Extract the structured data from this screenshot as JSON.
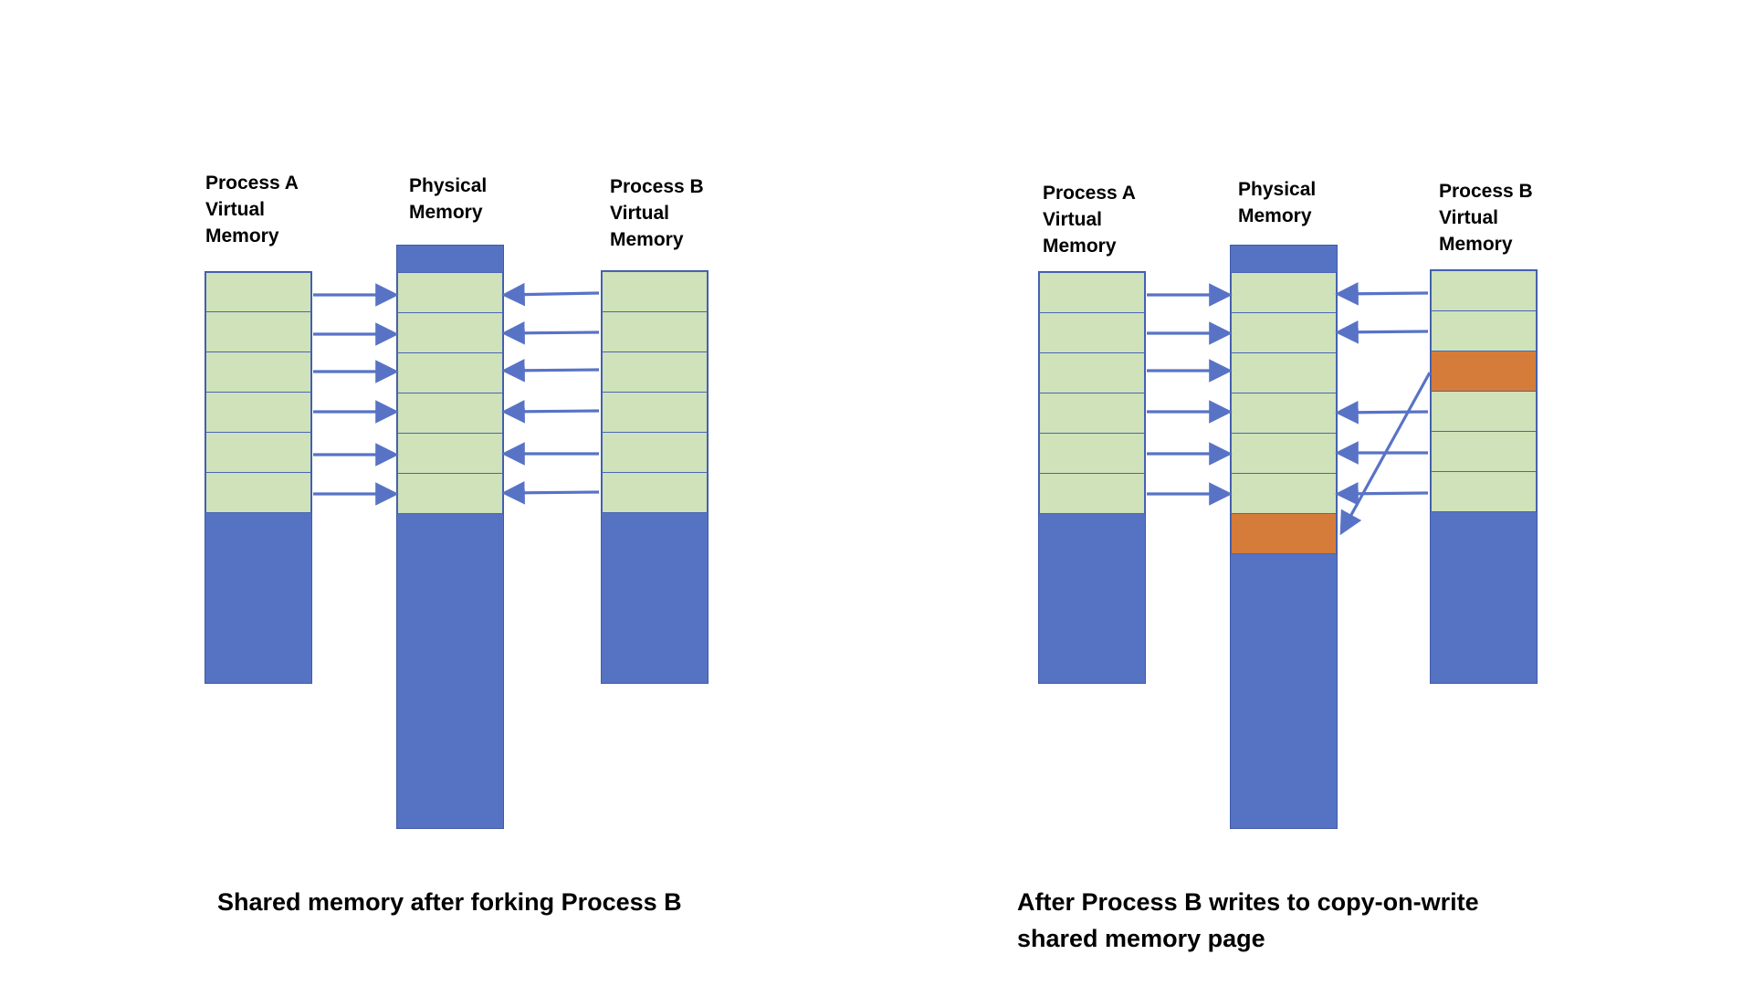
{
  "colors": {
    "memory_block": "#5672c3",
    "page_fill": "#cfe2b9",
    "page_border": "#4a66b4",
    "cow_page": "#d57c3a",
    "arrow": "#5873c6"
  },
  "left_diagram": {
    "process_a_label": "Process A\nVirtual\nMemory",
    "physical_label": "Physical\nMemory",
    "process_b_label": "Process B\nVirtual\nMemory",
    "caption": "Shared memory after forking Process B"
  },
  "right_diagram": {
    "process_a_label": "Process A\nVirtual\nMemory",
    "physical_label": "Physical\nMemory",
    "process_b_label": "Process B\nVirtual\nMemory",
    "caption": "After Process B writes to copy-on-write\nshared memory page"
  }
}
